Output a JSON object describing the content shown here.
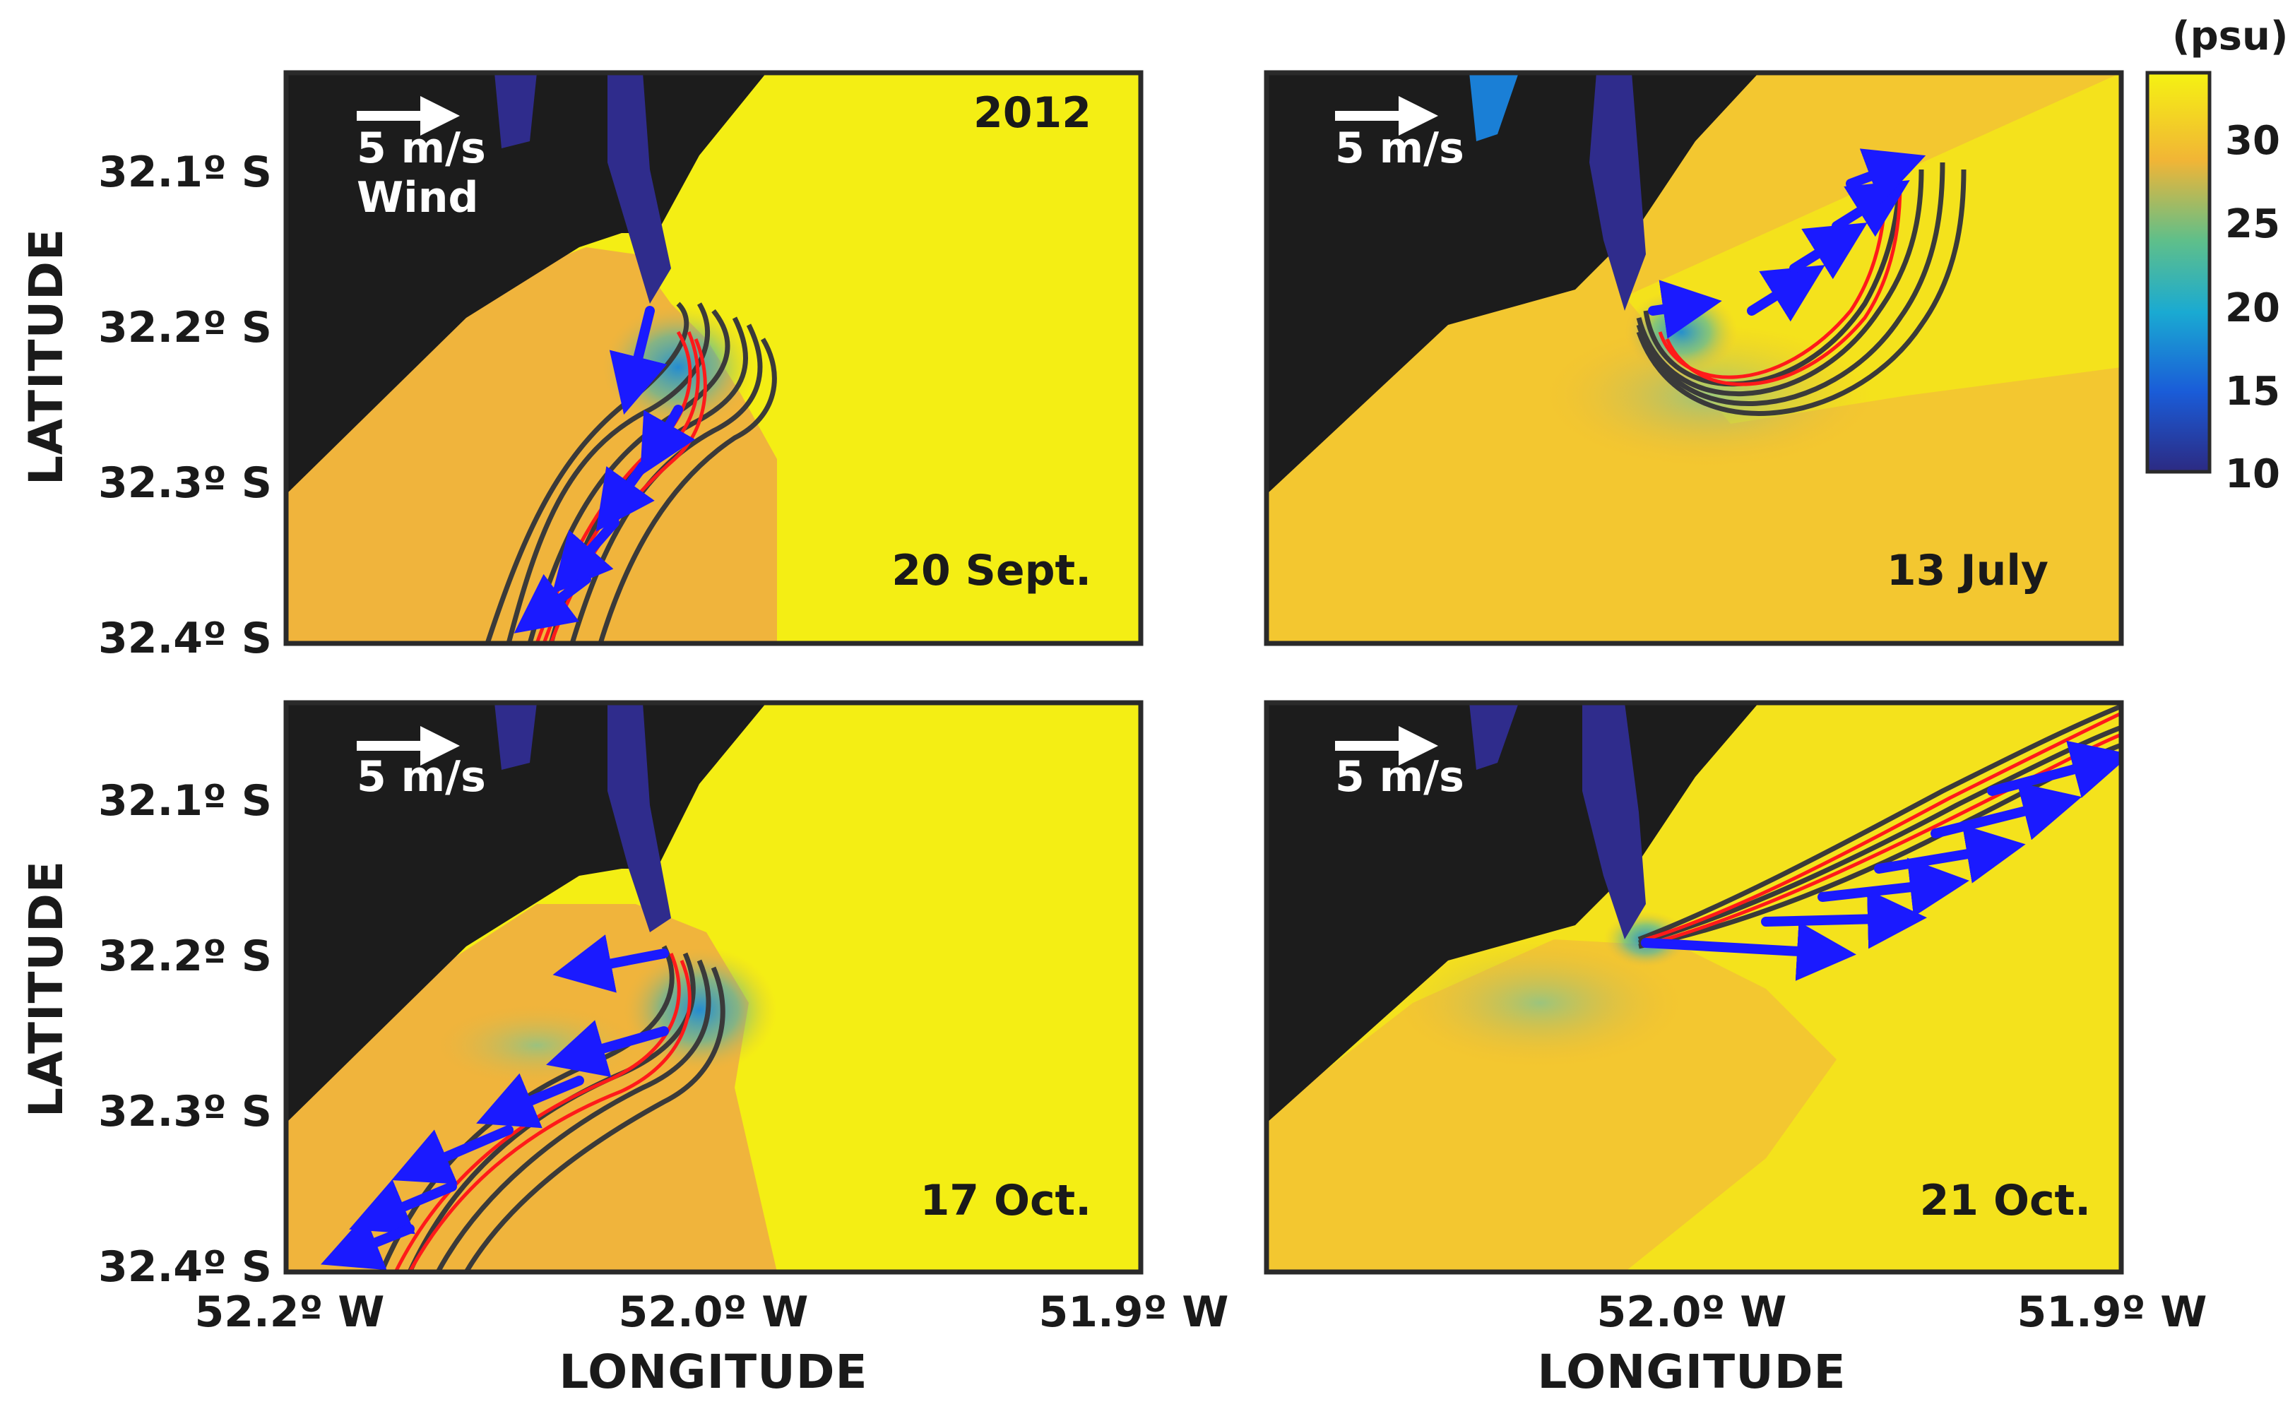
{
  "figure": {
    "year_label": "2012",
    "wind_label": "Wind",
    "scale_arrow_label": "5 m/s",
    "colorbar": {
      "unit": "(psu)",
      "ticks": [
        "30",
        "25",
        "20",
        "15",
        "10"
      ],
      "range": [
        10,
        33
      ]
    },
    "axes": {
      "ylabel": "LATITUDE",
      "xlabel": "LONGITUDE",
      "lat_ticks": [
        "32.1º S",
        "32.2º S",
        "32.3º S",
        "32.4º S"
      ],
      "lon_ticks_left": [
        "52.2º W",
        "52.0º W",
        "51.9º W"
      ],
      "lon_ticks_right": [
        "52.0º W",
        "51.9º W"
      ]
    },
    "panels": [
      {
        "id": "p1",
        "date": "20 Sept.",
        "wind_direction": "southwest"
      },
      {
        "id": "p2",
        "date": "13 July",
        "wind_direction": "northeast"
      },
      {
        "id": "p3",
        "date": "17 Oct.",
        "wind_direction": "southwest"
      },
      {
        "id": "p4",
        "date": "21 Oct.",
        "wind_direction": "east-northeast"
      }
    ],
    "colors": {
      "land": "#1c1c1c",
      "high_salinity": "#f5f20f",
      "mid_salinity": "#f2b63a",
      "low_salinity": "#2a2f8f",
      "wind_arrow": "#1a1aff",
      "ellipse": "#ff1a1a",
      "trajectory": "#3a3a3a"
    }
  }
}
